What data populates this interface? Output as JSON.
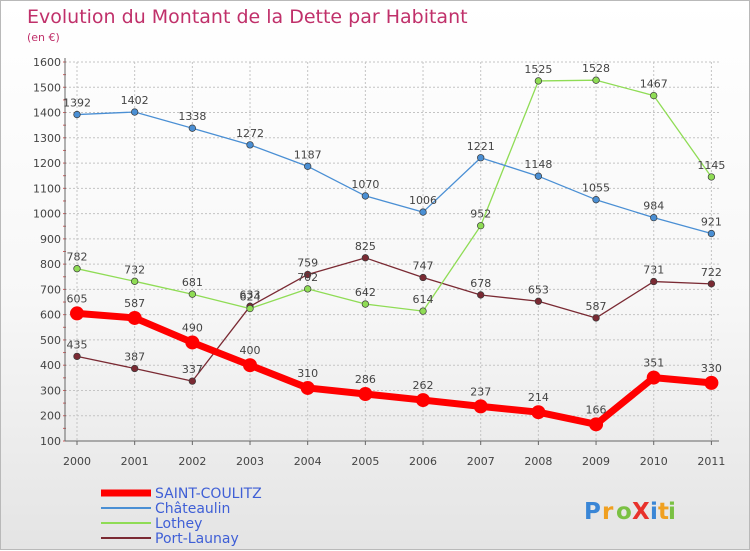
{
  "chart_data": {
    "type": "line",
    "title": "Evolution du Montant de la Dette par Habitant",
    "subtitle": "(en €)",
    "xlabel": "",
    "ylabel": "",
    "x": [
      "2000",
      "2001",
      "2002",
      "2003",
      "2004",
      "2005",
      "2006",
      "2007",
      "2008",
      "2009",
      "2010",
      "2011"
    ],
    "ylim": [
      100,
      1600
    ],
    "yticks": [
      100,
      200,
      300,
      400,
      500,
      600,
      700,
      800,
      900,
      1000,
      1100,
      1200,
      1300,
      1400,
      1500,
      1600
    ],
    "grid": true,
    "legend_position": "bottom-left",
    "series": [
      {
        "name": "SAINT-COULITZ",
        "color": "#ff0000",
        "values": [
          605,
          587,
          490,
          400,
          310,
          286,
          262,
          237,
          214,
          166,
          351,
          330
        ]
      },
      {
        "name": "Châteaulin",
        "color": "#4a8fd4",
        "values": [
          1392,
          1402,
          1338,
          1272,
          1187,
          1070,
          1006,
          1221,
          1148,
          1055,
          984,
          921
        ]
      },
      {
        "name": "Lothey",
        "color": "#8fdc55",
        "values": [
          782,
          732,
          681,
          624,
          702,
          642,
          614,
          952,
          1525,
          1528,
          1467,
          1145
        ]
      },
      {
        "name": "Port-Launay",
        "color": "#7a2a33",
        "values": [
          435,
          387,
          337,
          633,
          759,
          825,
          747,
          678,
          653,
          587,
          731,
          722
        ]
      }
    ]
  },
  "logo": {
    "text": "ProXiti",
    "letter_colors": [
      "#3a86d6",
      "#f0a020",
      "#7ac143",
      "#e8322c",
      "#3a86d6",
      "#f0a020",
      "#7ac143"
    ]
  }
}
